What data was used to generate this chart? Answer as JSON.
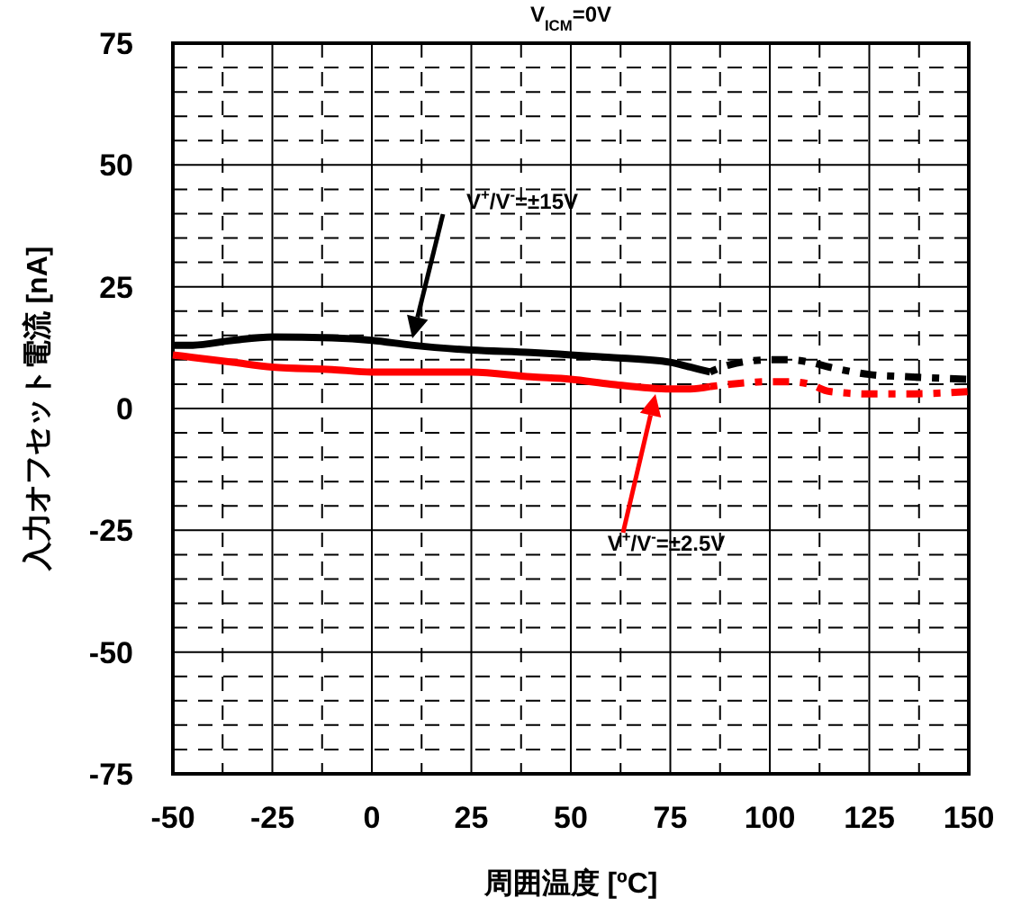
{
  "chart_data": {
    "type": "line",
    "title": "V$_{ICM}$=0V",
    "xlabel": "周囲温度 [ºC]",
    "ylabel": "入力オフセット電流 [nA]",
    "xlim": [
      -50,
      150
    ],
    "xticks": [
      -50,
      -25,
      0,
      25,
      50,
      75,
      100,
      125,
      150
    ],
    "ylim": [
      -75,
      75
    ],
    "yticks": [
      -75,
      -50,
      -25,
      0,
      25,
      50,
      75
    ],
    "grid": true,
    "annotations": [
      "V$^{+}$/V$^{-}$=±15V",
      "V$^{+}$/V$^{-}$=±2.5V"
    ],
    "series": [
      {
        "color": "#000000",
        "line_style": "solid",
        "x": [
          -50,
          -45,
          -35,
          -25,
          -10,
          0,
          10,
          25,
          40,
          50,
          60,
          75,
          80,
          85
        ],
        "values": [
          13,
          13,
          14,
          14.7,
          14.5,
          14,
          13,
          12,
          11.5,
          11,
          10.5,
          9.5,
          8.5,
          7.5
        ]
      },
      {
        "color": "#000000",
        "line_style": "dotted",
        "x": [
          85,
          90,
          100,
          105,
          110,
          115,
          125,
          135,
          150
        ],
        "values": [
          7.5,
          9,
          10,
          10,
          9.5,
          8.5,
          7,
          6.5,
          6
        ]
      },
      {
        "color": "#ff0000",
        "line_style": "solid",
        "x": [
          -50,
          -45,
          -35,
          -25,
          -10,
          0,
          10,
          25,
          40,
          50,
          60,
          75,
          80,
          85
        ],
        "values": [
          11,
          10.5,
          9.5,
          8.5,
          8,
          7.5,
          7.5,
          7.5,
          6.5,
          6,
          5,
          4,
          4,
          4.5
        ]
      },
      {
        "color": "#ff0000",
        "line_style": "dotted",
        "x": [
          85,
          90,
          100,
          105,
          110,
          115,
          125,
          135,
          150
        ],
        "values": [
          4.5,
          5,
          5.5,
          5.5,
          5,
          3.5,
          3,
          3,
          3.5
        ]
      }
    ]
  }
}
